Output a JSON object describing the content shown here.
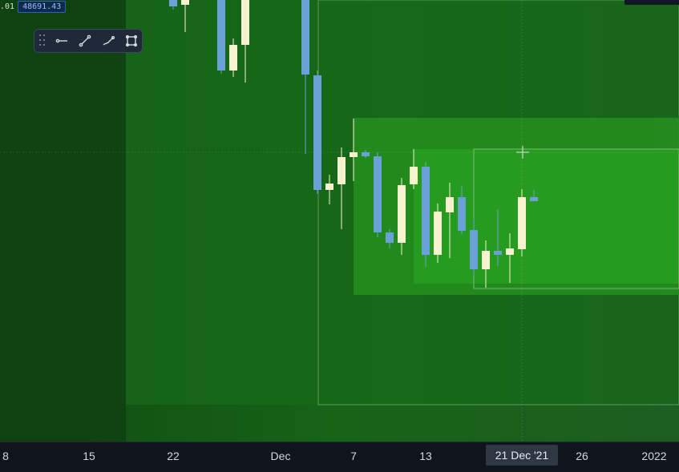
{
  "window": {
    "type": "candlestick-chart"
  },
  "header": {
    "price_step": ".01",
    "last_price": "48691.43"
  },
  "toolbar": {
    "tools": [
      {
        "icon": "horizontal-ray-icon",
        "label": ""
      },
      {
        "icon": "trend-line-icon",
        "label": ""
      },
      {
        "icon": "brush-icon",
        "label": ""
      },
      {
        "icon": "rectangle-select-icon",
        "label": ""
      }
    ]
  },
  "axis": {
    "ticks": [
      {
        "label": "8"
      },
      {
        "label": "15"
      },
      {
        "label": "22"
      },
      {
        "label": "Dec"
      },
      {
        "label": "7"
      },
      {
        "label": "13"
      },
      {
        "label": "26"
      },
      {
        "label": "2022"
      }
    ],
    "cursor_date": "21 Dec '21"
  },
  "colors": {
    "bull": "#f7f3cf",
    "bear": "#6aa2d8",
    "background": "#1f5d1f",
    "zone_light": "#2a8f27",
    "zone_mid": "#1f6f1e",
    "zone_border": "#7ea67e"
  }
}
